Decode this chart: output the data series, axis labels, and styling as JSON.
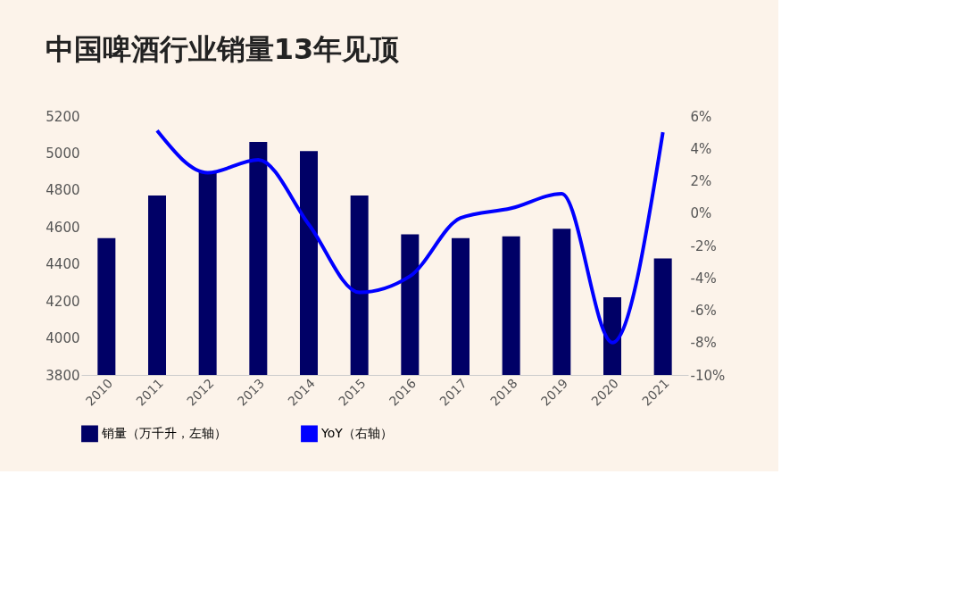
{
  "chart_data": {
    "type": "bar",
    "title": "中国啤酒行业销量13年见顶",
    "categories": [
      "2010",
      "2011",
      "2012",
      "2013",
      "2014",
      "2015",
      "2016",
      "2017",
      "2018",
      "2019",
      "2020",
      "2021"
    ],
    "series": [
      {
        "name": "销量（万千升，左轴）",
        "color": "#000066",
        "values": [
          4540,
          4770,
          4900,
          5060,
          5010,
          4770,
          4560,
          4540,
          4550,
          4590,
          4220,
          4430
        ]
      },
      {
        "name": "YoY（右轴）",
        "type": "line",
        "axis": "y2",
        "color": "#0000ff",
        "values": [
          null,
          5.1,
          2.5,
          3.3,
          -0.7,
          -4.9,
          -3.9,
          -0.3,
          0.3,
          1.2,
          -8.0,
          5.0
        ]
      }
    ],
    "ylim": [
      3800,
      5200
    ],
    "yticks": [
      3800,
      4000,
      4200,
      4400,
      4600,
      4800,
      5000,
      5200
    ],
    "y2lim": [
      -10,
      6
    ],
    "y2ticks": [
      {
        "value": -10,
        "label": "-10%"
      },
      {
        "value": -8,
        "label": "-8%"
      },
      {
        "value": -6,
        "label": "-6%"
      },
      {
        "value": -4,
        "label": "-4%"
      },
      {
        "value": -2,
        "label": "-2%"
      },
      {
        "value": 0,
        "label": "0%"
      },
      {
        "value": 2,
        "label": "2%"
      },
      {
        "value": 4,
        "label": "4%"
      },
      {
        "value": 6,
        "label": "6%"
      }
    ],
    "grid": false,
    "legend": "bottom",
    "marker": "none",
    "line_style": "solid"
  }
}
